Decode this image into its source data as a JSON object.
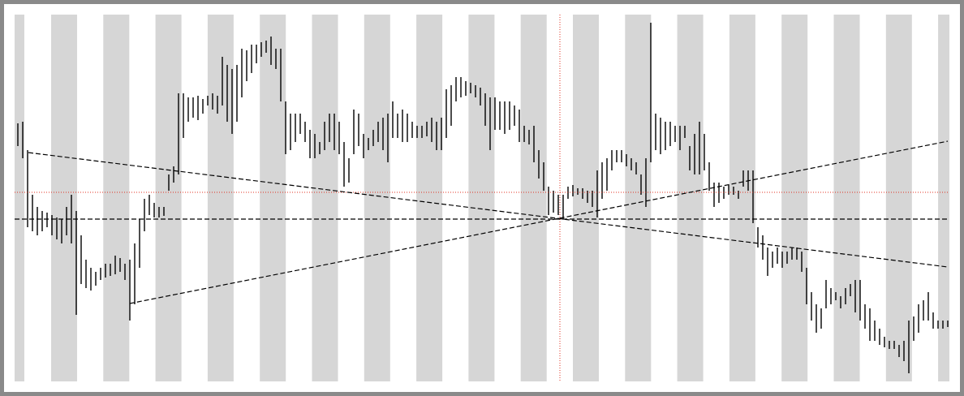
{
  "chart_data": {
    "type": "ohlc",
    "color": "#000000",
    "ylim": [
      0,
      452
    ],
    "high": [
      318,
      320,
      285,
      230,
      215,
      210,
      208,
      205,
      202,
      200,
      215,
      230,
      210,
      180,
      150,
      140,
      135,
      140,
      145,
      145,
      155,
      152,
      145,
      150,
      170,
      200,
      225,
      230,
      220,
      215,
      215,
      255,
      265,
      355,
      355,
      350,
      350,
      352,
      348,
      352,
      355,
      352,
      400,
      390,
      385,
      390,
      410,
      408,
      415,
      415,
      418,
      420,
      425,
      410,
      410,
      345,
      330,
      330,
      330,
      320,
      310,
      305,
      295,
      320,
      330,
      330,
      320,
      295,
      275,
      335,
      330,
      305,
      300,
      310,
      320,
      325,
      330,
      345,
      330,
      335,
      330,
      320,
      315,
      315,
      320,
      325,
      320,
      325,
      360,
      365,
      375,
      375,
      370,
      368,
      365,
      362,
      355,
      350,
      350,
      345,
      345,
      345,
      340,
      335,
      315,
      310,
      315,
      285,
      270,
      240,
      235,
      230,
      230,
      240,
      242,
      238,
      238,
      235,
      235,
      260,
      270,
      275,
      285,
      285,
      285,
      280,
      275,
      270,
      255,
      275,
      442,
      330,
      325,
      320,
      320,
      315,
      315,
      315,
      290,
      305,
      320,
      305,
      270,
      245,
      245,
      240,
      242,
      240,
      235,
      260,
      260,
      260,
      190,
      180,
      165,
      160,
      165,
      160,
      160,
      165,
      165,
      160,
      140,
      110,
      95,
      90,
      125,
      115,
      110,
      105,
      115,
      120,
      125,
      125,
      95,
      90,
      75,
      65,
      55,
      50,
      50,
      45,
      50,
      75,
      80,
      95,
      100,
      110,
      85,
      75,
      75,
      75
    ],
    "low": [
      290,
      275,
      190,
      185,
      180,
      185,
      190,
      180,
      175,
      170,
      180,
      170,
      82,
      120,
      115,
      112,
      118,
      125,
      128,
      130,
      132,
      135,
      125,
      75,
      95,
      140,
      185,
      205,
      202,
      202,
      204,
      235,
      245,
      255,
      300,
      320,
      325,
      322,
      330,
      340,
      335,
      330,
      340,
      320,
      305,
      320,
      350,
      370,
      380,
      392,
      400,
      405,
      390,
      385,
      345,
      280,
      285,
      295,
      305,
      295,
      275,
      275,
      280,
      285,
      295,
      285,
      280,
      240,
      245,
      280,
      290,
      275,
      285,
      290,
      295,
      285,
      270,
      300,
      300,
      295,
      295,
      300,
      300,
      300,
      302,
      295,
      285,
      285,
      300,
      315,
      345,
      350,
      352,
      355,
      350,
      340,
      315,
      285,
      310,
      310,
      305,
      310,
      315,
      295,
      295,
      292,
      270,
      250,
      235,
      205,
      208,
      205,
      200,
      225,
      228,
      230,
      225,
      220,
      215,
      202,
      225,
      235,
      260,
      270,
      270,
      265,
      260,
      255,
      230,
      215,
      270,
      285,
      280,
      285,
      290,
      295,
      285,
      300,
      260,
      255,
      255,
      260,
      235,
      215,
      220,
      225,
      230,
      230,
      225,
      240,
      235,
      195,
      165,
      150,
      130,
      140,
      145,
      140,
      145,
      150,
      150,
      135,
      95,
      75,
      60,
      65,
      90,
      95,
      100,
      90,
      95,
      105,
      85,
      75,
      65,
      50,
      50,
      45,
      42,
      40,
      40,
      30,
      25,
      10,
      50,
      60,
      75,
      75,
      65,
      65,
      65,
      67
    ]
  }
}
